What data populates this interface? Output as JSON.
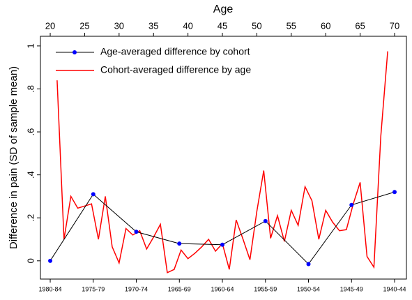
{
  "chart_data": {
    "type": "line",
    "xlabel": "Age",
    "ylabel": "Difference in pain (SD of sample mean)",
    "xlim": [
      18.58,
      71.72
    ],
    "xticks": [
      20,
      25,
      30,
      35,
      40,
      45,
      50,
      55,
      60,
      65,
      70
    ],
    "ylim": [
      -0.085,
      1.045
    ],
    "yticks": [
      0,
      {
        "value": 0.2,
        "label": ".2"
      },
      {
        "value": 0.4,
        "label": ".4"
      },
      {
        "value": 0.6,
        "label": ".6"
      },
      {
        "value": 0.8,
        "label": ".8"
      },
      1
    ],
    "categories": [
      "1980-84",
      "1975-79",
      "1970-74",
      "1965-69",
      "1960-64",
      "1955-59",
      "1950-54",
      "1945-49",
      "1940-44"
    ],
    "series": [
      {
        "name": "Age-averaged difference by cohort",
        "color": "#000000",
        "marker_color": "#0000ff",
        "values": [
          0.0,
          0.31,
          0.135,
          0.08,
          0.075,
          0.185,
          -0.015,
          0.26,
          0.32
        ]
      },
      {
        "name": "Cohort-averaged difference by age",
        "color": "#ff0000",
        "x": [
          21,
          22,
          23,
          24,
          25,
          26,
          27,
          28,
          29,
          30,
          31,
          32,
          33,
          34,
          35,
          36,
          37,
          38,
          39,
          40,
          41,
          42,
          43,
          44,
          45,
          46,
          47,
          48,
          49,
          50,
          51,
          52,
          53,
          54,
          55,
          56,
          57,
          58,
          59,
          60,
          61,
          62,
          63,
          64,
          65,
          66,
          67,
          68,
          69
        ],
        "values": [
          0.84,
          0.1,
          0.3,
          0.245,
          0.255,
          0.265,
          0.1,
          0.3,
          0.065,
          -0.01,
          0.15,
          0.12,
          0.14,
          0.055,
          0.11,
          0.17,
          -0.055,
          -0.04,
          0.05,
          0.01,
          0.035,
          0.065,
          0.1,
          0.045,
          0.08,
          -0.04,
          0.19,
          0.1,
          0.005,
          0.23,
          0.42,
          0.105,
          0.21,
          0.09,
          0.235,
          0.165,
          0.345,
          0.28,
          0.1,
          0.235,
          0.18,
          0.14,
          0.145,
          0.265,
          0.365,
          0.02,
          -0.03,
          0.58,
          0.975
        ]
      }
    ]
  }
}
